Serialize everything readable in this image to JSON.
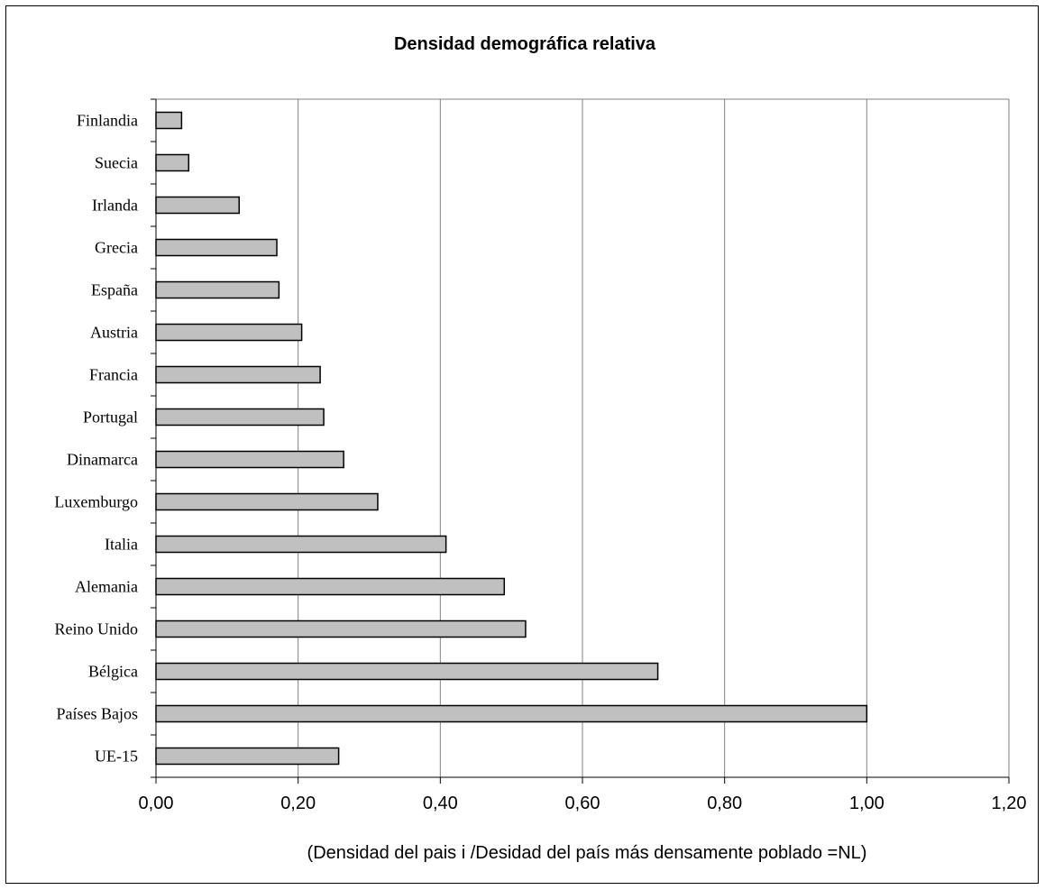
{
  "chart_data": {
    "type": "bar",
    "orientation": "horizontal",
    "title": "Densidad demográfica relativa",
    "xlabel": "(Densidad del pais i /Desidad del país más densamente poblado =NL)",
    "ylabel": "",
    "categories": [
      "Finlandia",
      "Suecia",
      "Irlanda",
      "Grecia",
      "España",
      "Austria",
      "Francia",
      "Portugal",
      "Dinamarca",
      "Luxemburgo",
      "Italia",
      "Alemania",
      "Reino Unido",
      "Bélgica",
      "Países Bajos",
      "UE-15"
    ],
    "values": [
      0.036,
      0.046,
      0.117,
      0.17,
      0.173,
      0.205,
      0.231,
      0.236,
      0.264,
      0.312,
      0.408,
      0.49,
      0.52,
      0.706,
      1.0,
      0.257
    ],
    "xlim": [
      0,
      1.2
    ],
    "xticks": [
      "0,00",
      "0,20",
      "0,40",
      "0,60",
      "0,80",
      "1,00",
      "1,20"
    ],
    "grid": "vertical",
    "legend": "none",
    "bar_color": "#c0c0c0",
    "bar_edge_color": "#000000",
    "grid_color": "#808080"
  }
}
